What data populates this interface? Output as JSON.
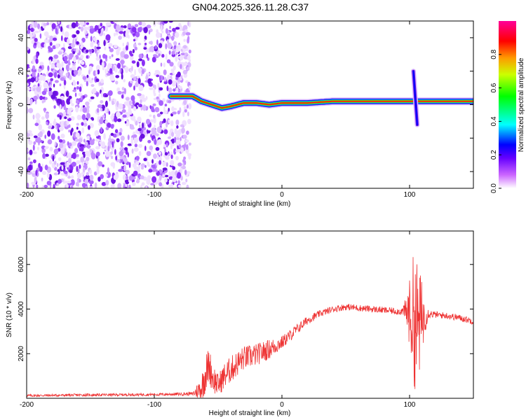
{
  "title": "GN04.2025.326.11.28.C37",
  "chart_data": [
    {
      "type": "heatmap",
      "xlabel": "Height of straight line (km)",
      "ylabel": "Frequency (Hz)",
      "xlim": [
        -200,
        150
      ],
      "ylim": [
        -50,
        50
      ],
      "x_ticks": [
        -200,
        -100,
        0,
        100
      ],
      "y_ticks": [
        -40,
        -20,
        0,
        20,
        40
      ],
      "x_tick_labels": [
        "-200",
        "-100",
        "0",
        "100"
      ],
      "y_tick_labels": [
        "-40",
        "-20",
        "0",
        "20",
        "40"
      ],
      "noise_region_x": [
        -200,
        -72
      ],
      "trace": {
        "x": [
          -87,
          -76,
          -70,
          -63,
          -55,
          -47,
          -40,
          -30,
          -20,
          -10,
          0,
          20,
          40,
          60,
          80,
          95,
          102,
          110,
          150
        ],
        "freq": [
          5,
          5,
          5,
          2,
          0,
          -2,
          -1,
          1,
          1,
          0,
          1,
          1,
          2,
          2,
          2,
          2,
          2,
          2,
          2
        ]
      },
      "spike": {
        "x": 103,
        "freq_range": [
          -12,
          20
        ]
      },
      "colorbar": {
        "label": "Normalized spectral amplitude",
        "range": [
          0,
          1
        ],
        "ticks": [
          0.0,
          0.2,
          0.4,
          0.6,
          0.8
        ],
        "tick_labels": [
          "0.0",
          "0.2",
          "0.4",
          "0.6",
          "0.8"
        ]
      }
    },
    {
      "type": "line",
      "xlabel": "Height of straight line (km)",
      "ylabel": "SNR (10 * v/v)",
      "xlim": [
        -200,
        150
      ],
      "ylim": [
        0,
        7500
      ],
      "x_ticks": [
        -200,
        -100,
        0,
        100
      ],
      "y_ticks": [
        2000,
        4000,
        6000
      ],
      "x_tick_labels": [
        "-200",
        "-100",
        "0",
        "100"
      ],
      "y_tick_labels": [
        "2000",
        "4000",
        "6000"
      ],
      "series": [
        {
          "name": "SNR",
          "color": "#ee3333",
          "x": [
            -200,
            -150,
            -100,
            -70,
            -63,
            -60,
            -57,
            -54,
            -50,
            -45,
            -40,
            -30,
            -20,
            -10,
            0,
            10,
            20,
            30,
            40,
            50,
            60,
            70,
            80,
            90,
            95,
            100,
            103,
            106,
            109,
            112,
            115,
            120,
            130,
            140,
            150
          ],
          "y": [
            120,
            150,
            170,
            200,
            450,
            1100,
            1500,
            900,
            600,
            1000,
            1300,
            1800,
            1950,
            2200,
            2500,
            3000,
            3500,
            3800,
            4000,
            4100,
            4050,
            4000,
            3950,
            3900,
            3900,
            3850,
            3500,
            3300,
            3500,
            3700,
            3800,
            3750,
            3700,
            3600,
            3450
          ],
          "noise_amp": [
            60,
            60,
            60,
            80,
            600,
            900,
            800,
            700,
            500,
            600,
            600,
            550,
            500,
            450,
            300,
            250,
            200,
            150,
            150,
            150,
            150,
            150,
            150,
            150,
            200,
            1500,
            3000,
            3000,
            2000,
            800,
            200,
            150,
            150,
            150,
            150
          ]
        }
      ]
    }
  ]
}
